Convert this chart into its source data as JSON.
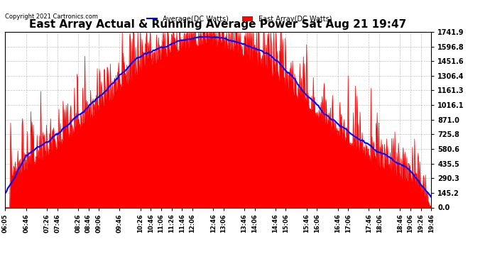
{
  "title": "East Array Actual & Running Average Power Sat Aug 21 19:47",
  "copyright": "Copyright 2021 Cartronics.com",
  "legend_avg": "Average(DC Watts)",
  "legend_east": "East Array(DC Watts)",
  "ylabel_right_ticks": [
    0.0,
    145.2,
    290.3,
    435.5,
    580.6,
    725.8,
    871.0,
    1016.1,
    1161.3,
    1306.4,
    1451.6,
    1596.8,
    1741.9
  ],
  "ylim": [
    0.0,
    1741.9
  ],
  "bg_color": "#ffffff",
  "grid_color": "#aaaaaa",
  "east_array_color": "#ff0000",
  "avg_color": "#0000ff",
  "title_color": "#000000",
  "copyright_color": "#000000",
  "legend_avg_color": "#0000ff",
  "legend_east_color": "#ff0000"
}
